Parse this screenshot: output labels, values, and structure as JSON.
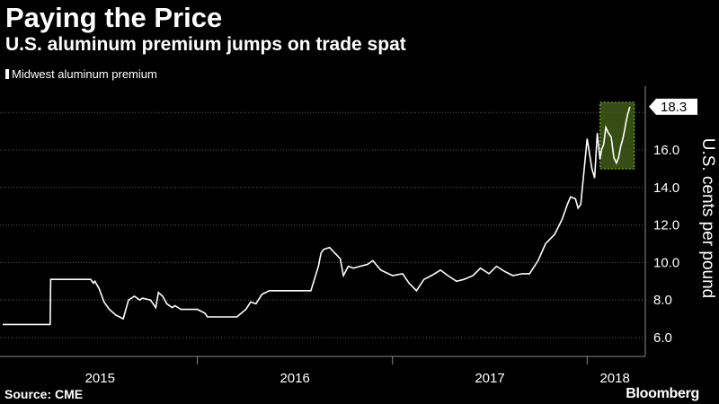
{
  "title": "Paying the Price",
  "subtitle": "U.S. aluminum premium jumps on trade spat",
  "source": "Source: CME",
  "brand": "Bloomberg",
  "colors": {
    "background": "#000000",
    "line": "#ffffff",
    "highlight_fill": "#3f5a16",
    "highlight_border": "#8ec63f",
    "grid": "#5a5a5a"
  },
  "chart_data": {
    "type": "line",
    "title": "Paying the Price",
    "subtitle": "U.S. aluminum premium jumps on trade spat",
    "ylabel": "U.S. cents per pound",
    "xlabel": "",
    "ylim": [
      5.5,
      19.0
    ],
    "y_ticks": [
      "6.0",
      "8.0",
      "10.0",
      "12.0",
      "14.0",
      "16.0"
    ],
    "x_tick_labels": [
      "2015",
      "2016",
      "2017",
      "2018"
    ],
    "grid": true,
    "legend_position": "top-left",
    "last_value_label": "18.3",
    "series": [
      {
        "name": "Midwest aluminum premium",
        "x": [
          "2015-01-01",
          "2015-03-31",
          "2015-04-01",
          "2015-06-15",
          "2015-06-20",
          "2015-06-23",
          "2015-07-01",
          "2015-07-10",
          "2015-07-20",
          "2015-08-01",
          "2015-08-15",
          "2015-08-25",
          "2015-09-05",
          "2015-09-15",
          "2015-09-20",
          "2015-10-05",
          "2015-10-15",
          "2015-10-20",
          "2015-10-28",
          "2015-11-05",
          "2015-11-15",
          "2015-11-20",
          "2015-12-01",
          "2016-01-01",
          "2016-01-15",
          "2016-01-20",
          "2016-02-01",
          "2016-03-01",
          "2016-03-15",
          "2016-04-01",
          "2016-04-10",
          "2016-04-20",
          "2016-05-01",
          "2016-05-15",
          "2016-06-01",
          "2016-06-15",
          "2016-07-01",
          "2016-07-15",
          "2016-08-01",
          "2016-08-15",
          "2016-08-20",
          "2016-08-25",
          "2016-09-05",
          "2016-09-15",
          "2016-09-25",
          "2016-10-01",
          "2016-10-10",
          "2016-10-20",
          "2016-11-01",
          "2016-11-15",
          "2016-11-25",
          "2016-12-01",
          "2016-12-10",
          "2017-01-01",
          "2017-01-20",
          "2017-02-01",
          "2017-02-15",
          "2017-03-01",
          "2017-03-15",
          "2017-04-01",
          "2017-04-15",
          "2017-05-01",
          "2017-05-15",
          "2017-06-01",
          "2017-06-15",
          "2017-07-01",
          "2017-07-15",
          "2017-08-01",
          "2017-08-15",
          "2017-09-01",
          "2017-09-15",
          "2017-10-01",
          "2017-10-15",
          "2017-11-01",
          "2017-11-15",
          "2017-11-20",
          "2017-11-25",
          "2017-12-01",
          "2017-12-10",
          "2017-12-15",
          "2017-12-20",
          "2018-01-01",
          "2018-01-10",
          "2018-01-15",
          "2018-01-20",
          "2018-01-25",
          "2018-01-28",
          "2018-02-01",
          "2018-02-05",
          "2018-02-10",
          "2018-02-15",
          "2018-02-20",
          "2018-02-25",
          "2018-03-01",
          "2018-03-05",
          "2018-03-08",
          "2018-03-12",
          "2018-03-15",
          "2018-03-18",
          "2018-03-22"
        ],
        "values": [
          6.7,
          6.7,
          9.1,
          9.1,
          8.9,
          9.0,
          8.6,
          7.9,
          7.5,
          7.2,
          7.0,
          8.0,
          8.2,
          8.0,
          8.1,
          8.0,
          7.6,
          8.4,
          8.2,
          7.8,
          7.6,
          7.7,
          7.5,
          7.5,
          7.3,
          7.1,
          7.1,
          7.1,
          7.1,
          7.5,
          7.9,
          7.8,
          8.3,
          8.5,
          8.5,
          8.5,
          8.5,
          8.5,
          8.5,
          9.8,
          10.5,
          10.7,
          10.8,
          10.5,
          10.2,
          9.3,
          9.8,
          9.7,
          9.8,
          9.9,
          10.1,
          9.9,
          9.6,
          9.3,
          9.4,
          8.9,
          8.5,
          9.1,
          9.3,
          9.6,
          9.3,
          9.0,
          9.1,
          9.3,
          9.7,
          9.4,
          9.8,
          9.5,
          9.3,
          9.4,
          9.4,
          10.1,
          11.0,
          11.5,
          12.3,
          12.7,
          13.1,
          13.5,
          13.4,
          12.9,
          13.1,
          16.6,
          15.0,
          14.5,
          16.9,
          15.5,
          16.0,
          16.3,
          17.2,
          16.9,
          16.7,
          15.6,
          15.3,
          15.6,
          16.2,
          16.5,
          17.0,
          17.5,
          17.9,
          18.3
        ]
      }
    ]
  }
}
